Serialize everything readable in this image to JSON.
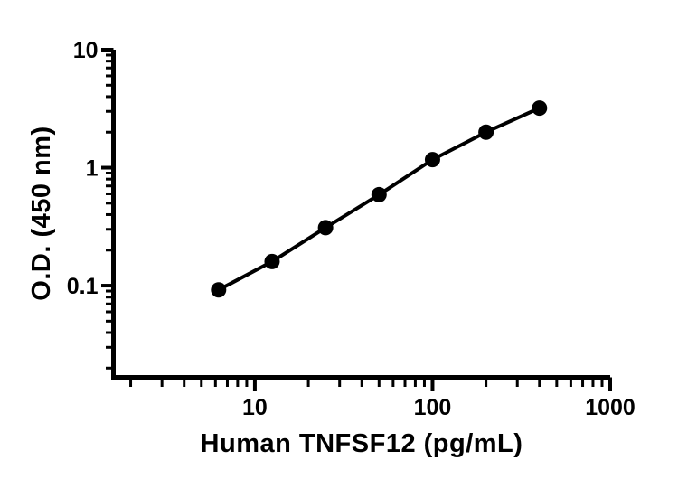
{
  "chart_data": {
    "type": "line",
    "title": "",
    "xlabel": "Human TNFSF12 (pg/mL)",
    "ylabel": "O.D. (450 nm)",
    "x_scale": "log",
    "y_scale": "log",
    "x": [
      6.25,
      12.5,
      25,
      50,
      100,
      200,
      400
    ],
    "y": [
      0.092,
      0.16,
      0.31,
      0.59,
      1.17,
      2.0,
      3.2
    ],
    "xlim": [
      1.6,
      1000
    ],
    "ylim": [
      0.0167,
      10
    ],
    "x_major_ticks": [
      10,
      100,
      1000
    ],
    "x_major_tick_labels": [
      "10",
      "100",
      "1000"
    ],
    "y_major_ticks": [
      10,
      1,
      0.1
    ],
    "y_major_tick_labels": [
      "10",
      "1",
      "0.1"
    ],
    "grid": false,
    "legend_position": "none",
    "line_color": "#000000",
    "marker_color": "#000000",
    "marker_shape": "circle",
    "background_color": "#ffffff"
  }
}
